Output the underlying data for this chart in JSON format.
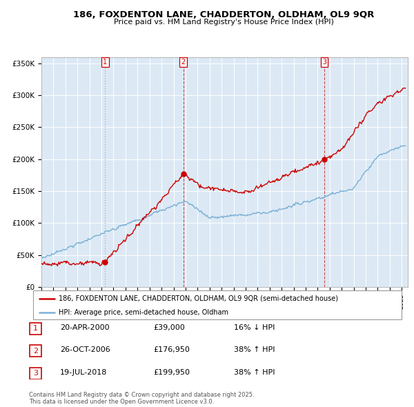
{
  "title": "186, FOXDENTON LANE, CHADDERTON, OLDHAM, OL9 9QR",
  "subtitle": "Price paid vs. HM Land Registry's House Price Index (HPI)",
  "background_color": "#ffffff",
  "plot_background": "#dce9f5",
  "grid_color": "#ffffff",
  "red_line_color": "#cc0000",
  "blue_line_color": "#7ab0d4",
  "vline1_color": "#aaaacc",
  "vline2_color": "#cc0000",
  "vline3_color": "#cc0000",
  "sales": [
    {
      "label": "1",
      "date_num": 2000.3,
      "price": 39000
    },
    {
      "label": "2",
      "date_num": 2006.82,
      "price": 176950
    },
    {
      "label": "3",
      "date_num": 2018.55,
      "price": 199950
    }
  ],
  "sale_table": [
    {
      "num": "1",
      "date": "20-APR-2000",
      "price": "£39,000",
      "hpi": "16% ↓ HPI"
    },
    {
      "num": "2",
      "date": "26-OCT-2006",
      "price": "£176,950",
      "hpi": "38% ↑ HPI"
    },
    {
      "num": "3",
      "date": "19-JUL-2018",
      "price": "£199,950",
      "hpi": "38% ↑ HPI"
    }
  ],
  "legend_red": "186, FOXDENTON LANE, CHADDERTON, OLDHAM, OL9 9QR (semi-detached house)",
  "legend_blue": "HPI: Average price, semi-detached house, Oldham",
  "footer": "Contains HM Land Registry data © Crown copyright and database right 2025.\nThis data is licensed under the Open Government Licence v3.0.",
  "ylim": [
    0,
    360000
  ],
  "xlim_start": 1995.0,
  "xlim_end": 2025.5
}
